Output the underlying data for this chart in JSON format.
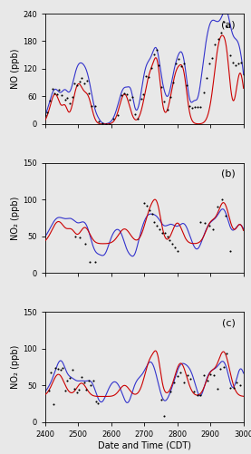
{
  "xlim": [
    2400,
    3000
  ],
  "xticks": [
    2400,
    2500,
    2600,
    2700,
    2800,
    2900,
    3000
  ],
  "xlabel": "Date and Time (CDT)",
  "panel_a": {
    "label": "(a)",
    "ylabel": "NO (ppb)",
    "ylim": [
      0,
      240
    ],
    "yticks": [
      0,
      60,
      120,
      180,
      240
    ]
  },
  "panel_b": {
    "label": "(b)",
    "ylabel": "NO₂ (ppb)",
    "ylim": [
      0,
      150
    ],
    "yticks": [
      0,
      50,
      100,
      150
    ]
  },
  "panel_c": {
    "label": "(c)",
    "ylabel": "NO₂ (ppb)",
    "ylim": [
      0,
      150
    ],
    "yticks": [
      0,
      50,
      100,
      150
    ]
  },
  "line_red_color": "#cc0000",
  "line_blue_color": "#3333cc",
  "obs_color": "black",
  "obs_marker": ".",
  "obs_markersize": 3,
  "line_width": 0.8,
  "bg_color": "#e8e8e8",
  "label_fontsize": 7,
  "tick_fontsize": 6,
  "panel_label_fontsize": 8
}
